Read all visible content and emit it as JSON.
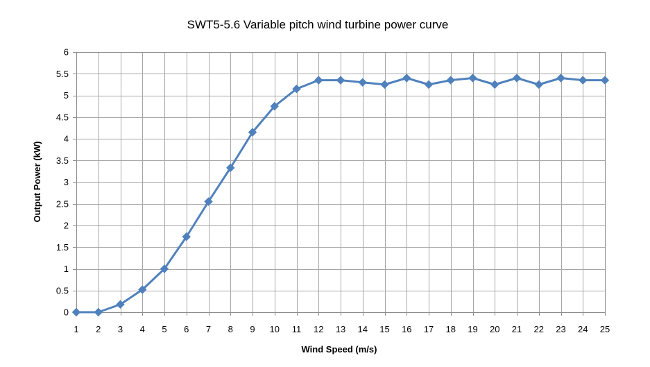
{
  "chart_data": {
    "type": "line",
    "title": "SWT5-5.6 Variable pitch wind turbine power curve",
    "xlabel": "Wind Speed (m/s)",
    "ylabel": "Output Power (kW)",
    "x": [
      1,
      2,
      3,
      4,
      5,
      6,
      7,
      8,
      9,
      10,
      11,
      12,
      13,
      14,
      15,
      16,
      17,
      18,
      19,
      20,
      21,
      22,
      23,
      24,
      25
    ],
    "x_tick_labels": [
      "1",
      "2",
      "3",
      "4",
      "5",
      "6",
      "7",
      "8",
      "9",
      "10",
      "11",
      "12",
      "13",
      "14",
      "15",
      "16",
      "17",
      "18",
      "19",
      "20",
      "21",
      "22",
      "23",
      "24",
      "25"
    ],
    "y_ticks": [
      0,
      0.5,
      1,
      1.5,
      2,
      2.5,
      3,
      3.5,
      4,
      4.5,
      5,
      5.5,
      6
    ],
    "y_tick_labels": [
      "0",
      "0.5",
      "1",
      "1.5",
      "2",
      "2.5",
      "3",
      "3.5",
      "4",
      "4.5",
      "5",
      "5.5",
      "6"
    ],
    "ylim": [
      0,
      6
    ],
    "xlim": [
      1,
      25
    ],
    "grid": true,
    "legend": "none",
    "series": [
      {
        "color": "#4f81bd",
        "marker": "diamond",
        "values": [
          0,
          0,
          0.18,
          0.52,
          1.0,
          1.74,
          2.55,
          3.33,
          4.15,
          4.75,
          5.15,
          5.35,
          5.35,
          5.3,
          5.25,
          5.4,
          5.25,
          5.35,
          5.4,
          5.25,
          5.4,
          5.25,
          5.4,
          5.35,
          5.35
        ]
      }
    ],
    "colors": {
      "grid": "#a6a6a6",
      "plot_border": "#8c8c8c"
    }
  }
}
